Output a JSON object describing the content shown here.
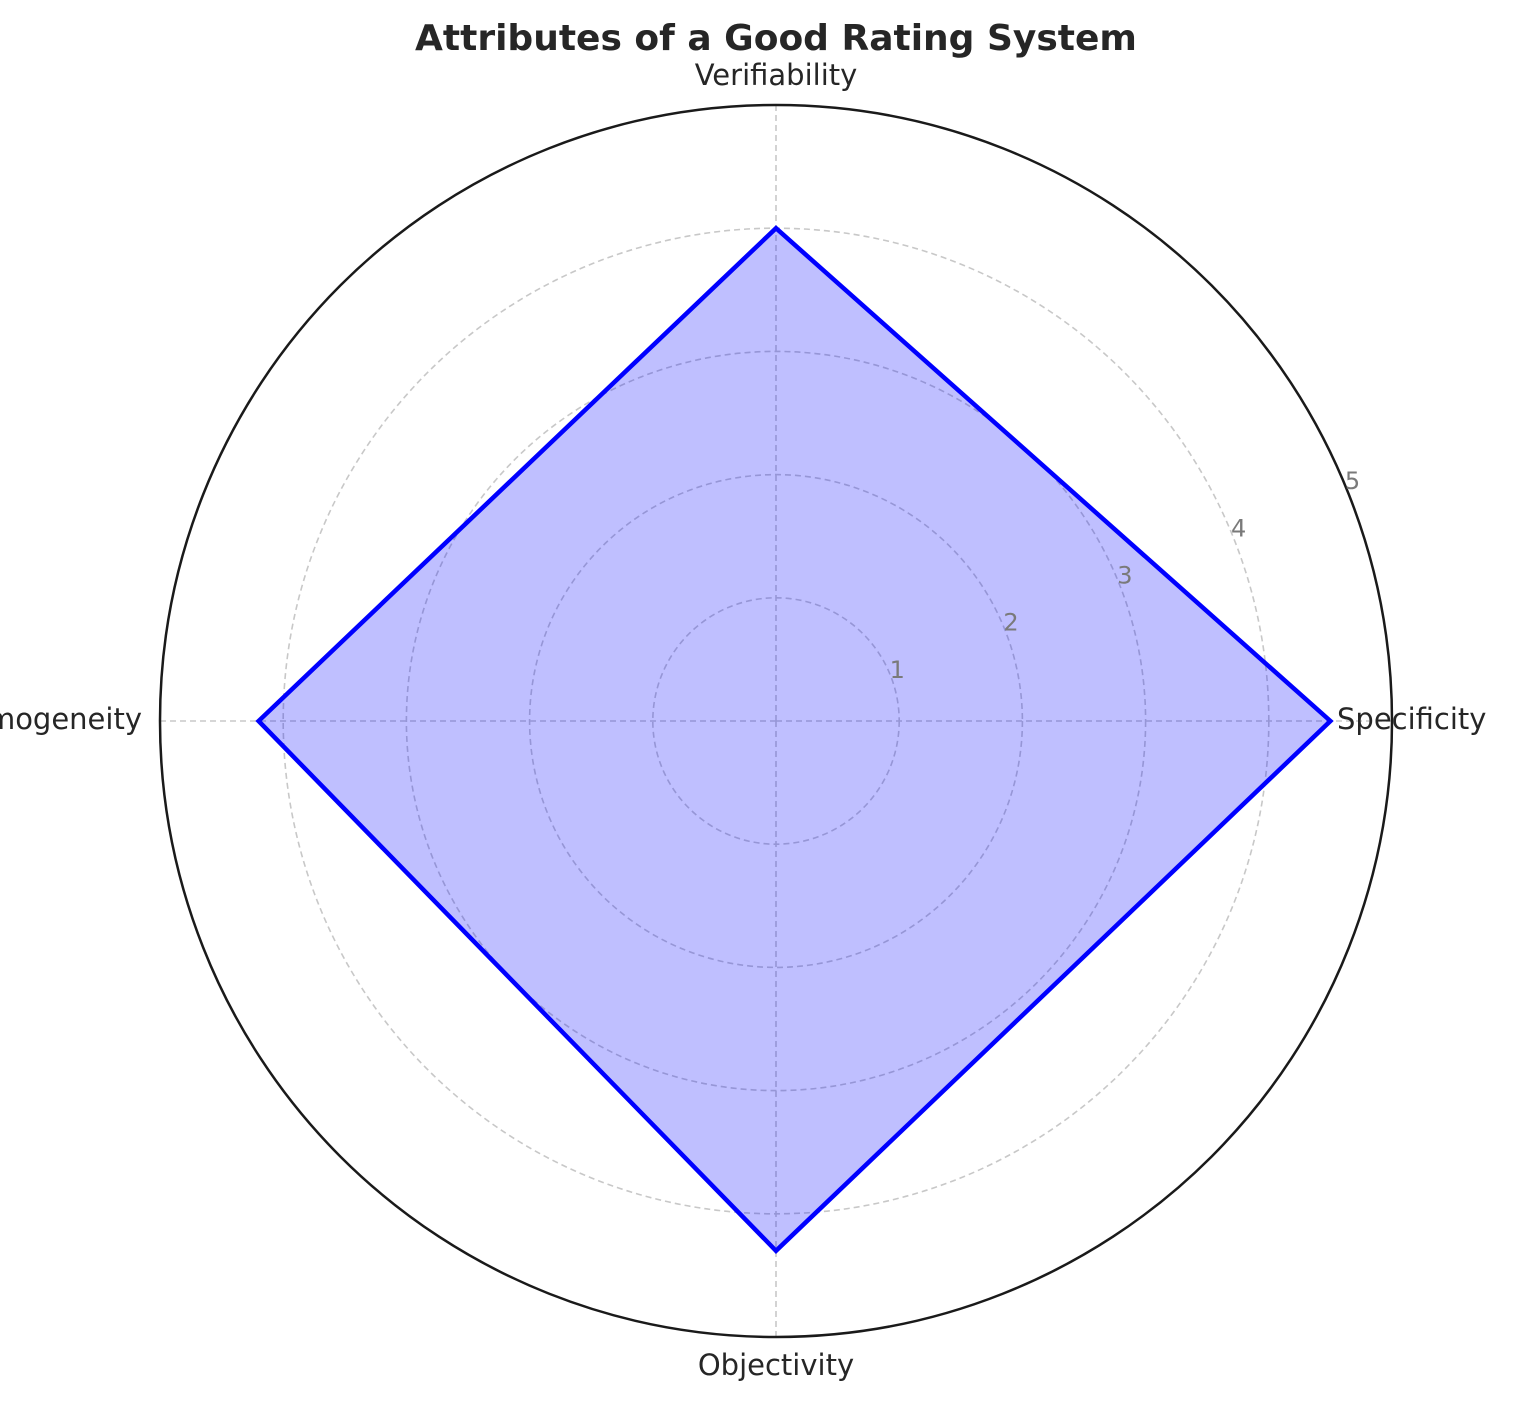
{
  "chart_data": {
    "type": "radar",
    "title": "Attributes of a Good Rating System",
    "categories": [
      "Specificity",
      "Verifiability",
      "Homogeneity",
      "Objectivity"
    ],
    "series": [
      {
        "values": [
          4.5,
          4.0,
          4.2,
          4.3
        ]
      }
    ],
    "rlim": [
      0,
      5
    ],
    "r_ticks": [
      "1",
      "2",
      "3",
      "4",
      "5"
    ],
    "grid": true,
    "colors": {
      "line": "#0000ff",
      "fill": "#0000ff",
      "fill_opacity": 0.25
    }
  }
}
